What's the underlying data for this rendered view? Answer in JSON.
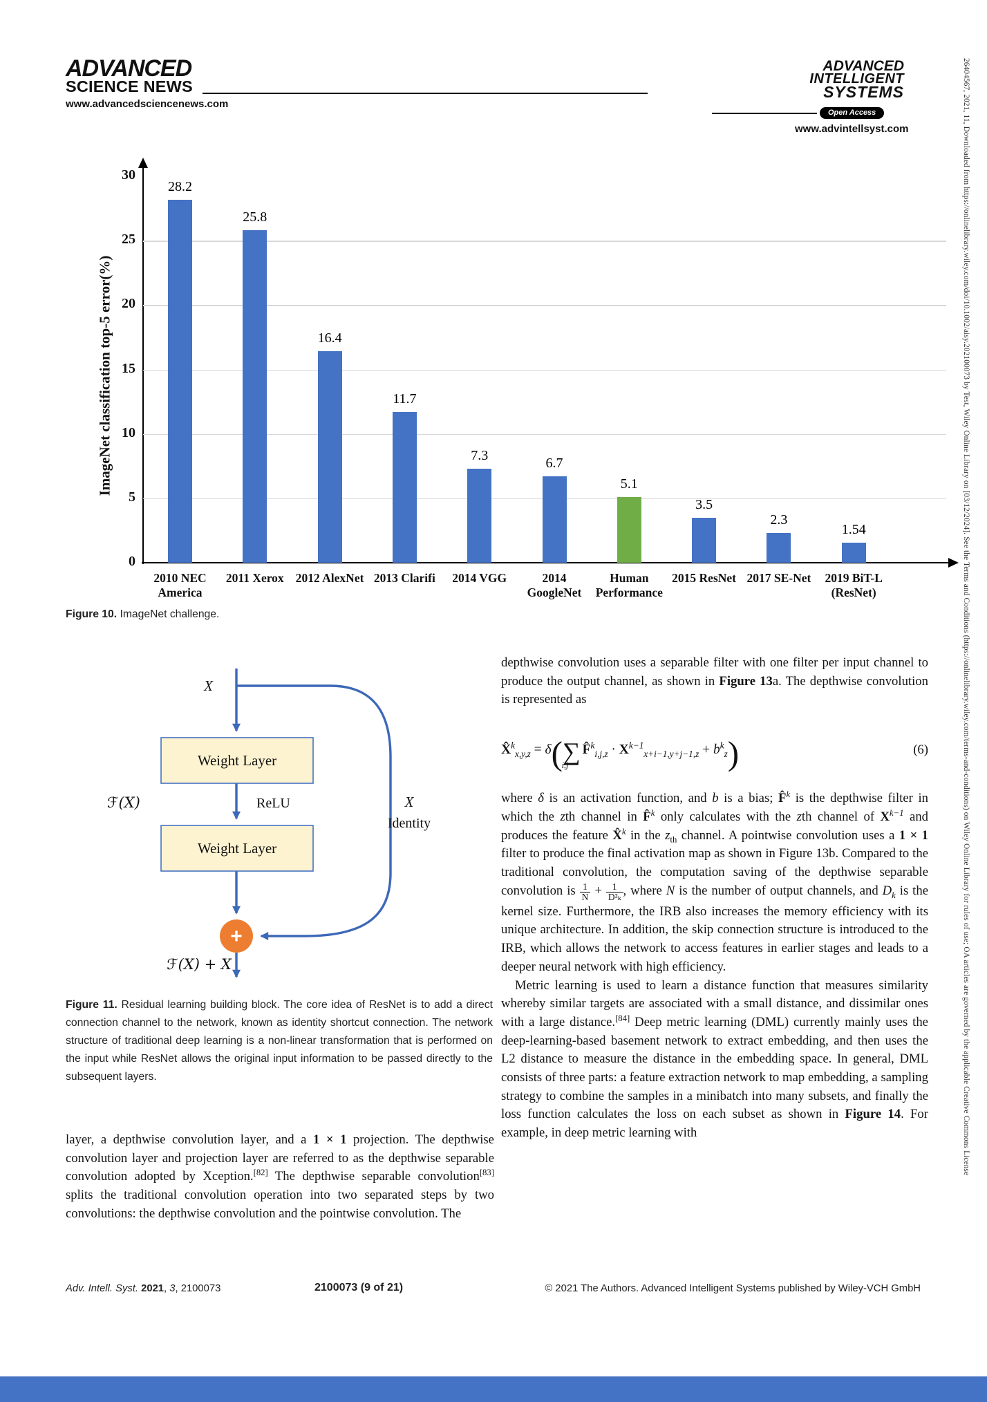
{
  "header": {
    "left_logo_line1": "ADVANCED",
    "left_logo_line2": "SCIENCE NEWS",
    "left_url": "www.advancedsciencenews.com",
    "right_logo_line1": "ADVANCED",
    "right_logo_line2": "INTELLIGENT",
    "right_logo_line3": "SYSTEMS",
    "open_access": "Open Access",
    "right_url": "www.advintellsyst.com"
  },
  "chart_data": {
    "type": "bar",
    "title": "",
    "xlabel": "",
    "ylabel": "ImageNet classification top-5 error(%)",
    "ylim": [
      0,
      30
    ],
    "yticks": [
      0,
      5,
      10,
      15,
      20,
      25,
      30
    ],
    "grid": true,
    "legend": "none",
    "categories": [
      [
        "2010 NEC",
        "America"
      ],
      [
        "2011 Xerox"
      ],
      [
        "2012 AlexNet"
      ],
      [
        "2013 Clarifi"
      ],
      [
        "2014 VGG"
      ],
      [
        "2014",
        "GoogleNet"
      ],
      [
        "Human",
        "Performance"
      ],
      [
        "2015 ResNet"
      ],
      [
        "2017 SE-Net"
      ],
      [
        "2019 BiT-L",
        "(ResNet)"
      ]
    ],
    "values": [
      28.2,
      25.8,
      16.4,
      11.7,
      7.3,
      6.7,
      5.1,
      3.5,
      2.3,
      1.54
    ],
    "value_labels": [
      "28.2",
      "25.8",
      "16.4",
      "11.7",
      "7.3",
      "6.7",
      "5.1",
      "3.5",
      "2.3",
      "1.54"
    ],
    "bar_colors": [
      "#4472C4",
      "#4472C4",
      "#4472C4",
      "#4472C4",
      "#4472C4",
      "#4472C4",
      "#70AD47",
      "#4472C4",
      "#4472C4",
      "#4472C4"
    ]
  },
  "fig10_caption": [
    {
      "t": "Figure 10.",
      "s": "b"
    },
    {
      "t": "  ImageNet challenge.",
      "s": ""
    }
  ],
  "diagram": {
    "x_label": "X",
    "weight_layer_1": "Weight Layer",
    "fx_label": "ℱ(X)",
    "relu_label": "ReLU",
    "identity_label_1": "X",
    "identity_label_2": "Identity",
    "weight_layer_2": "Weight Layer",
    "plus": "+",
    "output_label": "ℱ(X) + X",
    "box_fill": "#FDF3D0",
    "box_border": "#4472C4",
    "arrow_color": "#3C68B8",
    "circle_fill": "#ED7D31"
  },
  "fig11_caption": [
    {
      "t": "Figure 11.",
      "s": "b"
    },
    {
      "t": "  Residual learning building block. The core idea of ResNet is to add a direct connection channel to the network, known as identity shortcut connection. The network structure of traditional deep learning is a non-linear transformation that is performed on the input while ResNet allows the original input information to be passed directly to the subsequent layers.",
      "s": ""
    }
  ],
  "left_col_para": [
    {
      "t": "layer, a depthwise convolution layer, and a ",
      "s": ""
    },
    {
      "t": "1 × 1",
      "s": "b"
    },
    {
      "t": " projection. The depthwise convolution layer and projection layer are referred to as the depthwise separable convolution adopted by Xception.",
      "s": ""
    },
    {
      "t": "[82]",
      "s": "sup"
    },
    {
      "t": " The depthwise separable convolution",
      "s": ""
    },
    {
      "t": "[83]",
      "s": "sup"
    },
    {
      "t": " splits the traditional convolution operation into two separated steps by two convolutions: the depthwise convolution and the pointwise convolution. The",
      "s": ""
    }
  ],
  "right_col": {
    "p1": [
      {
        "t": "depthwise convolution uses a separable filter with one filter per input channel to produce the output channel, as shown in ",
        "s": ""
      },
      {
        "t": "Figure 13",
        "s": "b"
      },
      {
        "t": "a. The depthwise convolution is represented as",
        "s": ""
      }
    ],
    "eq": [
      {
        "t": "X̂",
        "s": "beq"
      },
      {
        "t": "k",
        "s": "isup"
      },
      {
        "t": "x,y,z",
        "s": "isub"
      },
      {
        "t": " = ",
        "s": ""
      },
      {
        "t": "δ",
        "s": "i"
      },
      {
        "t": "(",
        "s": "bigp"
      },
      {
        "t": "∑",
        "s": "sum"
      },
      {
        "t": "i,j",
        "s": "isublow"
      },
      {
        "t": "F̂",
        "s": "beq"
      },
      {
        "t": "k",
        "s": "isup"
      },
      {
        "t": "i,j,z",
        "s": "isub"
      },
      {
        "t": " · ",
        "s": ""
      },
      {
        "t": "X",
        "s": "beq"
      },
      {
        "t": "k−1",
        "s": "isup"
      },
      {
        "t": "x+i−1,y+j−1,z",
        "s": "isub"
      },
      {
        "t": " + ",
        "s": ""
      },
      {
        "t": "b",
        "s": "i"
      },
      {
        "t": "k",
        "s": "isup"
      },
      {
        "t": "z",
        "s": "isub"
      },
      {
        "t": ")",
        "s": "bigp"
      }
    ],
    "eq_number": "(6)",
    "p2": [
      {
        "t": "where ",
        "s": ""
      },
      {
        "t": "δ",
        "s": "i"
      },
      {
        "t": " is an activation function, and ",
        "s": ""
      },
      {
        "t": "b",
        "s": "i"
      },
      {
        "t": " is a bias; ",
        "s": ""
      },
      {
        "t": "F̂",
        "s": "b"
      },
      {
        "t": "k",
        "s": "isup"
      },
      {
        "t": " is the depthwise filter in which the ",
        "s": ""
      },
      {
        "t": "z",
        "s": "i"
      },
      {
        "t": "th channel in ",
        "s": ""
      },
      {
        "t": "F̂",
        "s": "b"
      },
      {
        "t": "k",
        "s": "isup"
      },
      {
        "t": " only calculates with the ",
        "s": ""
      },
      {
        "t": "z",
        "s": "i"
      },
      {
        "t": "th channel of ",
        "s": ""
      },
      {
        "t": "X",
        "s": "b"
      },
      {
        "t": "k−1",
        "s": "isup"
      },
      {
        "t": " and produces the feature ",
        "s": ""
      },
      {
        "t": "X̂",
        "s": "b"
      },
      {
        "t": "k",
        "s": "isup"
      },
      {
        "t": " in the ",
        "s": ""
      },
      {
        "t": "z",
        "s": "i"
      },
      {
        "t": "th",
        "s": "sub"
      },
      {
        "t": " channel. A pointwise convolution uses a ",
        "s": ""
      },
      {
        "t": "1 × 1",
        "s": "b"
      },
      {
        "t": " filter to produce the final activation map as shown in Figure 13b. Compared to the traditional convolution, the computation saving of the depthwise separable convolution is ",
        "s": ""
      },
      {
        "f": [
          "1",
          "N"
        ]
      },
      {
        "t": " + ",
        "s": ""
      },
      {
        "f": [
          "1",
          "D²ₖ"
        ]
      },
      {
        "t": ", where ",
        "s": ""
      },
      {
        "t": "N",
        "s": "i"
      },
      {
        "t": " is the number of output channels, and ",
        "s": ""
      },
      {
        "t": "D",
        "s": "i"
      },
      {
        "t": "k",
        "s": "isub"
      },
      {
        "t": " is the kernel size. Furthermore, the IRB also increases the memory efficiency with its unique architecture. In addition, the skip connection structure is introduced to the IRB, which allows the network to access features in earlier stages and leads to a deeper neural network with high efficiency.",
        "s": ""
      }
    ],
    "p3": [
      {
        "t": "Metric learning is used to learn a distance function that measures similarity whereby similar targets are associated with a small distance, and dissimilar ones with a large distance.",
        "s": ""
      },
      {
        "t": "[84]",
        "s": "sup"
      },
      {
        "t": " Deep metric learning (DML) currently mainly uses the deep-learning-based basement network to extract embedding, and then uses the L2 distance to measure the distance in the embedding space. In general, DML consists of three parts: a feature extraction network to map embedding, a sampling strategy to combine the samples in a minibatch into many subsets, and finally the loss function calculates the loss on each subset as shown in ",
        "s": ""
      },
      {
        "t": "Figure 14",
        "s": "b"
      },
      {
        "t": ". For example, in deep metric learning with",
        "s": ""
      }
    ]
  },
  "footer": {
    "left": [
      {
        "t": "Adv. Intell. Syst. ",
        "s": "i"
      },
      {
        "t": "2021",
        "s": "b"
      },
      {
        "t": ", ",
        "s": ""
      },
      {
        "t": "3",
        "s": "i"
      },
      {
        "t": ", 2100073",
        "s": ""
      }
    ],
    "center": "2100073 (9 of 21)",
    "right": "© 2021 The Authors. Advanced Intelligent Systems published by Wiley-VCH GmbH"
  },
  "sidebar_text": "26404567, 2021, 11, Downloaded from https://onlinelibrary.wiley.com/doi/10.1002/aisy.202100073 by Test, Wiley Online Library on [03/12/2024]. See the Terms and Conditions (https://onlinelibrary.wiley.com/terms-and-conditions) on Wiley Online Library for rules of use; OA articles are governed by the applicable Creative Commons License",
  "colors": {
    "bottom_band": "#4472C4",
    "bar_blue": "#4472C4",
    "bar_green": "#70AD47"
  }
}
